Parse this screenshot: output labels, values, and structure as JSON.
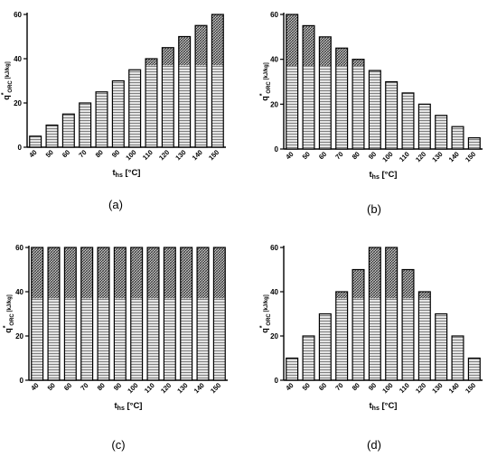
{
  "panels": [
    {
      "id": "a",
      "caption": "(a)",
      "chart_data": {
        "type": "bar",
        "categories": [
          "40",
          "50",
          "60",
          "70",
          "80",
          "90",
          "100",
          "110",
          "120",
          "130",
          "140",
          "150"
        ],
        "values": [
          5,
          10,
          15,
          20,
          25,
          30,
          35,
          40,
          45,
          50,
          55,
          60
        ],
        "ylim": [
          0,
          60
        ],
        "yticks": [
          0,
          20,
          40,
          60
        ],
        "ylabel": "q*ORC [kJ/kg]",
        "xlabel": "ths [°C]",
        "grid": false
      }
    },
    {
      "id": "b",
      "caption": "(b)",
      "chart_data": {
        "type": "bar",
        "categories": [
          "40",
          "50",
          "60",
          "70",
          "80",
          "90",
          "100",
          "110",
          "120",
          "130",
          "140",
          "150"
        ],
        "values": [
          60,
          55,
          50,
          45,
          40,
          35,
          30,
          25,
          20,
          15,
          10,
          5
        ],
        "ylim": [
          0,
          60
        ],
        "yticks": [
          0,
          20,
          40,
          60
        ],
        "ylabel": "q*ORC [kJ/kg]",
        "xlabel": "ths [°C]",
        "grid": false
      }
    },
    {
      "id": "c",
      "caption": "(c)",
      "chart_data": {
        "type": "bar",
        "categories": [
          "40",
          "50",
          "60",
          "70",
          "80",
          "90",
          "100",
          "110",
          "120",
          "130",
          "140",
          "150"
        ],
        "values": [
          60,
          60,
          60,
          60,
          60,
          60,
          60,
          60,
          60,
          60,
          60,
          60
        ],
        "ylim": [
          0,
          60
        ],
        "yticks": [
          0,
          20,
          40,
          60
        ],
        "ylabel": "q*ORC [kJ/kg]",
        "xlabel": "ths [°C]",
        "grid": false
      }
    },
    {
      "id": "d",
      "caption": "(d)",
      "chart_data": {
        "type": "bar",
        "categories": [
          "40",
          "50",
          "60",
          "70",
          "80",
          "90",
          "100",
          "110",
          "120",
          "130",
          "140",
          "150"
        ],
        "values": [
          10,
          20,
          30,
          40,
          50,
          60,
          60,
          50,
          40,
          30,
          20,
          10
        ],
        "ylim": [
          0,
          60
        ],
        "yticks": [
          0,
          20,
          40,
          60
        ],
        "ylabel": "q*ORC [kJ/kg]",
        "xlabel": "ths [°C]",
        "grid": false
      }
    }
  ],
  "axis_text": {
    "q": "q",
    "star": "*",
    "orc": "ORC",
    "unit": " [kJ/kg]",
    "t": "t",
    "hs": "hs",
    "deg": " [°C]"
  },
  "colors": {
    "bar_fill": "#bdbdbd",
    "bar_stroke": "#000000",
    "hatch_upper": "#333333",
    "hatch_lower": "#555555",
    "axis": "#000000"
  }
}
